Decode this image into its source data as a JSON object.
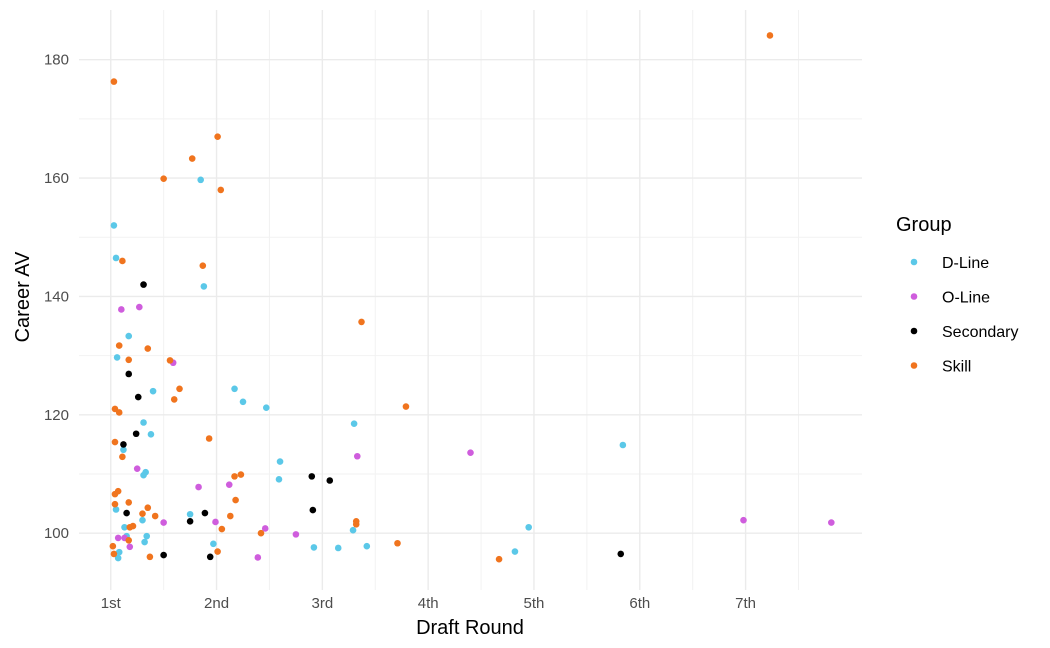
{
  "chart_data": {
    "type": "scatter",
    "xlabel": "Draft Round",
    "ylabel": "Career AV",
    "x_ticks": [
      {
        "value": 1,
        "label": "1st"
      },
      {
        "value": 2,
        "label": "2nd"
      },
      {
        "value": 3,
        "label": "3rd"
      },
      {
        "value": 4,
        "label": "4th"
      },
      {
        "value": 5,
        "label": "5th"
      },
      {
        "value": 6,
        "label": "6th"
      },
      {
        "value": 7,
        "label": "7th"
      }
    ],
    "y_ticks": [
      100,
      120,
      140,
      160,
      180
    ],
    "xlim": [
      0.7,
      8.1
    ],
    "ylim": [
      90.4,
      188.4
    ],
    "grid": true,
    "legend": {
      "title": "Group",
      "position": "right"
    },
    "series": [
      {
        "name": "D-Line",
        "color": "#5bc8e8",
        "points": [
          [
            1.03,
            152
          ],
          [
            1.05,
            146.5
          ],
          [
            1.06,
            129.7
          ],
          [
            1.17,
            133.3
          ],
          [
            1.12,
            114.1
          ],
          [
            1.05,
            104
          ],
          [
            1.13,
            101
          ],
          [
            1.15,
            99.5
          ],
          [
            1.08,
            96.8
          ],
          [
            1.07,
            95.8
          ],
          [
            1.4,
            124
          ],
          [
            1.38,
            116.7
          ],
          [
            1.31,
            118.7
          ],
          [
            1.33,
            110.3
          ],
          [
            1.31,
            109.8
          ],
          [
            1.3,
            102.2
          ],
          [
            1.34,
            99.5
          ],
          [
            1.32,
            98.5
          ],
          [
            1.85,
            159.7
          ],
          [
            1.88,
            141.7
          ],
          [
            2.17,
            124.4
          ],
          [
            2.25,
            122.2
          ],
          [
            2.47,
            121.2
          ],
          [
            2.6,
            112.1
          ],
          [
            2.59,
            109.1
          ],
          [
            1.97,
            98.2
          ],
          [
            1.75,
            103.2
          ],
          [
            3.3,
            118.5
          ],
          [
            3.29,
            100.5
          ],
          [
            3.42,
            97.8
          ],
          [
            3.15,
            97.5
          ],
          [
            2.92,
            97.6
          ],
          [
            4.95,
            101
          ],
          [
            4.82,
            96.9
          ],
          [
            5.84,
            114.9
          ]
        ]
      },
      {
        "name": "O-Line",
        "color": "#cf5ddd",
        "points": [
          [
            1.1,
            137.8
          ],
          [
            1.27,
            138.2
          ],
          [
            1.25,
            110.9
          ],
          [
            1.18,
            97.7
          ],
          [
            1.07,
            99.2
          ],
          [
            1.13,
            99.2
          ],
          [
            1.5,
            101.8
          ],
          [
            1.59,
            128.8
          ],
          [
            1.83,
            107.8
          ],
          [
            2.12,
            108.2
          ],
          [
            1.99,
            101.9
          ],
          [
            2.46,
            100.8
          ],
          [
            2.39,
            95.9
          ],
          [
            2.75,
            99.8
          ],
          [
            3.33,
            113
          ],
          [
            4.4,
            113.6
          ],
          [
            6.98,
            102.2
          ],
          [
            7.81,
            101.8
          ]
        ]
      },
      {
        "name": "Secondary",
        "color": "#000000",
        "points": [
          [
            1.31,
            142
          ],
          [
            1.17,
            126.9
          ],
          [
            1.26,
            123
          ],
          [
            1.24,
            116.8
          ],
          [
            1.12,
            115
          ],
          [
            1.15,
            103.4
          ],
          [
            1.5,
            96.3
          ],
          [
            1.75,
            102
          ],
          [
            1.89,
            103.4
          ],
          [
            1.94,
            96
          ],
          [
            2.9,
            109.6
          ],
          [
            2.91,
            103.9
          ],
          [
            3.07,
            108.9
          ],
          [
            5.82,
            96.5
          ]
        ]
      },
      {
        "name": "Skill",
        "color": "#f0741e",
        "points": [
          [
            1.03,
            176.3
          ],
          [
            1.08,
            131.7
          ],
          [
            1.11,
            146
          ],
          [
            1.17,
            129.3
          ],
          [
            1.04,
            121
          ],
          [
            1.08,
            120.4
          ],
          [
            1.04,
            115.4
          ],
          [
            1.11,
            112.9
          ],
          [
            1.04,
            106.6
          ],
          [
            1.07,
            107.1
          ],
          [
            1.04,
            104.9
          ],
          [
            1.17,
            105.2
          ],
          [
            1.02,
            97.8
          ],
          [
            1.03,
            96.5
          ],
          [
            1.18,
            101
          ],
          [
            1.21,
            101.2
          ],
          [
            1.17,
            98.8
          ],
          [
            1.35,
            131.2
          ],
          [
            1.3,
            103.3
          ],
          [
            1.35,
            104.3
          ],
          [
            1.42,
            102.9
          ],
          [
            1.37,
            96
          ],
          [
            1.5,
            159.9
          ],
          [
            1.56,
            129.2
          ],
          [
            1.6,
            122.6
          ],
          [
            1.65,
            124.4
          ],
          [
            1.77,
            163.3
          ],
          [
            1.87,
            145.2
          ],
          [
            1.93,
            116
          ],
          [
            2.01,
            167
          ],
          [
            2.04,
            158
          ],
          [
            2.17,
            109.6
          ],
          [
            2.23,
            109.9
          ],
          [
            2.18,
            105.6
          ],
          [
            2.13,
            102.9
          ],
          [
            2.05,
            100.7
          ],
          [
            2.01,
            96.9
          ],
          [
            2.42,
            100
          ],
          [
            3.37,
            135.7
          ],
          [
            3.32,
            102
          ],
          [
            3.32,
            101.5
          ],
          [
            3.79,
            121.4
          ],
          [
            3.71,
            98.3
          ],
          [
            4.67,
            95.6
          ],
          [
            7.23,
            184.1
          ]
        ]
      }
    ]
  }
}
